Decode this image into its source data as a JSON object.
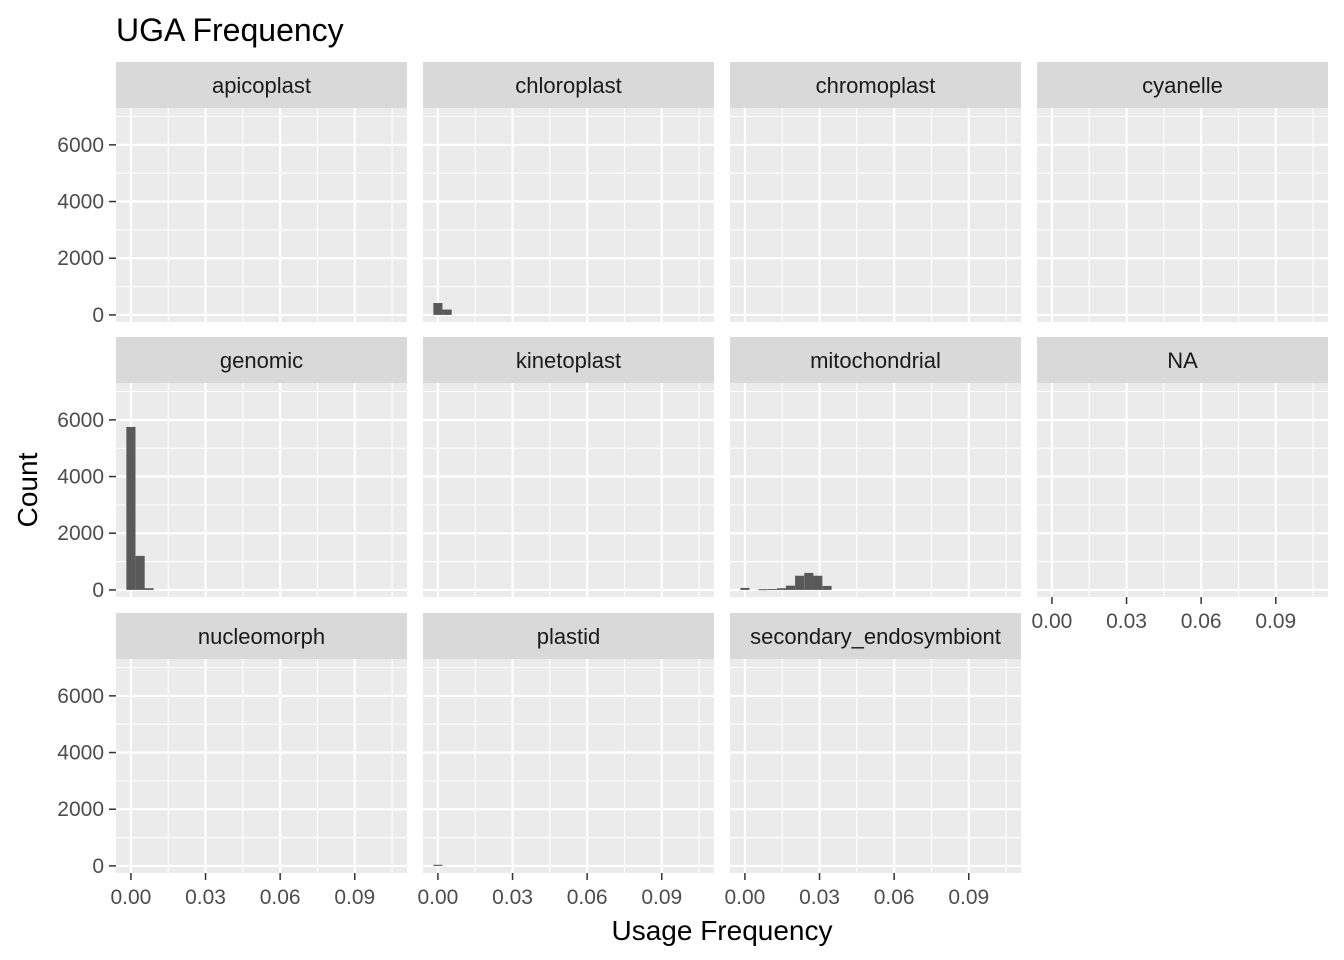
{
  "chart_data": {
    "type": "bar",
    "title": "UGA Frequency",
    "xlabel": "Usage Frequency",
    "ylabel": "Count",
    "xlim": [
      -0.006,
      0.111
    ],
    "ylim": [
      -250,
      7300
    ],
    "x_ticks": [
      0.0,
      0.03,
      0.06,
      0.09
    ],
    "x_tick_labels": [
      "0.00",
      "0.03",
      "0.06",
      "0.09"
    ],
    "y_ticks": [
      0,
      2000,
      4000,
      6000
    ],
    "y_tick_labels": [
      "0",
      "2000",
      "4000",
      "6000"
    ],
    "bin_width": 0.00367,
    "grid": true,
    "colors": {
      "panel_bg": "#ebebeb",
      "strip_bg": "#d9d9d9",
      "grid": "#ffffff",
      "bar": "#595959"
    },
    "facets": [
      {
        "name": "apicoplast",
        "bins": []
      },
      {
        "name": "chloroplast",
        "bins": [
          {
            "x": 0.0,
            "count": 420
          },
          {
            "x": 0.0037,
            "count": 190
          }
        ]
      },
      {
        "name": "chromoplast",
        "bins": []
      },
      {
        "name": "cyanelle",
        "bins": []
      },
      {
        "name": "genomic",
        "bins": [
          {
            "x": 0.0,
            "count": 5750
          },
          {
            "x": 0.0037,
            "count": 1200
          },
          {
            "x": 0.0073,
            "count": 60
          }
        ]
      },
      {
        "name": "kinetoplast",
        "bins": []
      },
      {
        "name": "mitochondrial",
        "bins": [
          {
            "x": 0.0,
            "count": 70
          },
          {
            "x": 0.0073,
            "count": 25
          },
          {
            "x": 0.011,
            "count": 30
          },
          {
            "x": 0.0147,
            "count": 60
          },
          {
            "x": 0.0183,
            "count": 150
          },
          {
            "x": 0.022,
            "count": 500
          },
          {
            "x": 0.0257,
            "count": 600
          },
          {
            "x": 0.0293,
            "count": 500
          },
          {
            "x": 0.033,
            "count": 140
          }
        ]
      },
      {
        "name": "NA",
        "bins": []
      },
      {
        "name": "nucleomorph",
        "bins": []
      },
      {
        "name": "plastid",
        "bins": [
          {
            "x": 0.0,
            "count": 40
          }
        ]
      },
      {
        "name": "secondary_endosymbiont",
        "bins": []
      }
    ]
  }
}
